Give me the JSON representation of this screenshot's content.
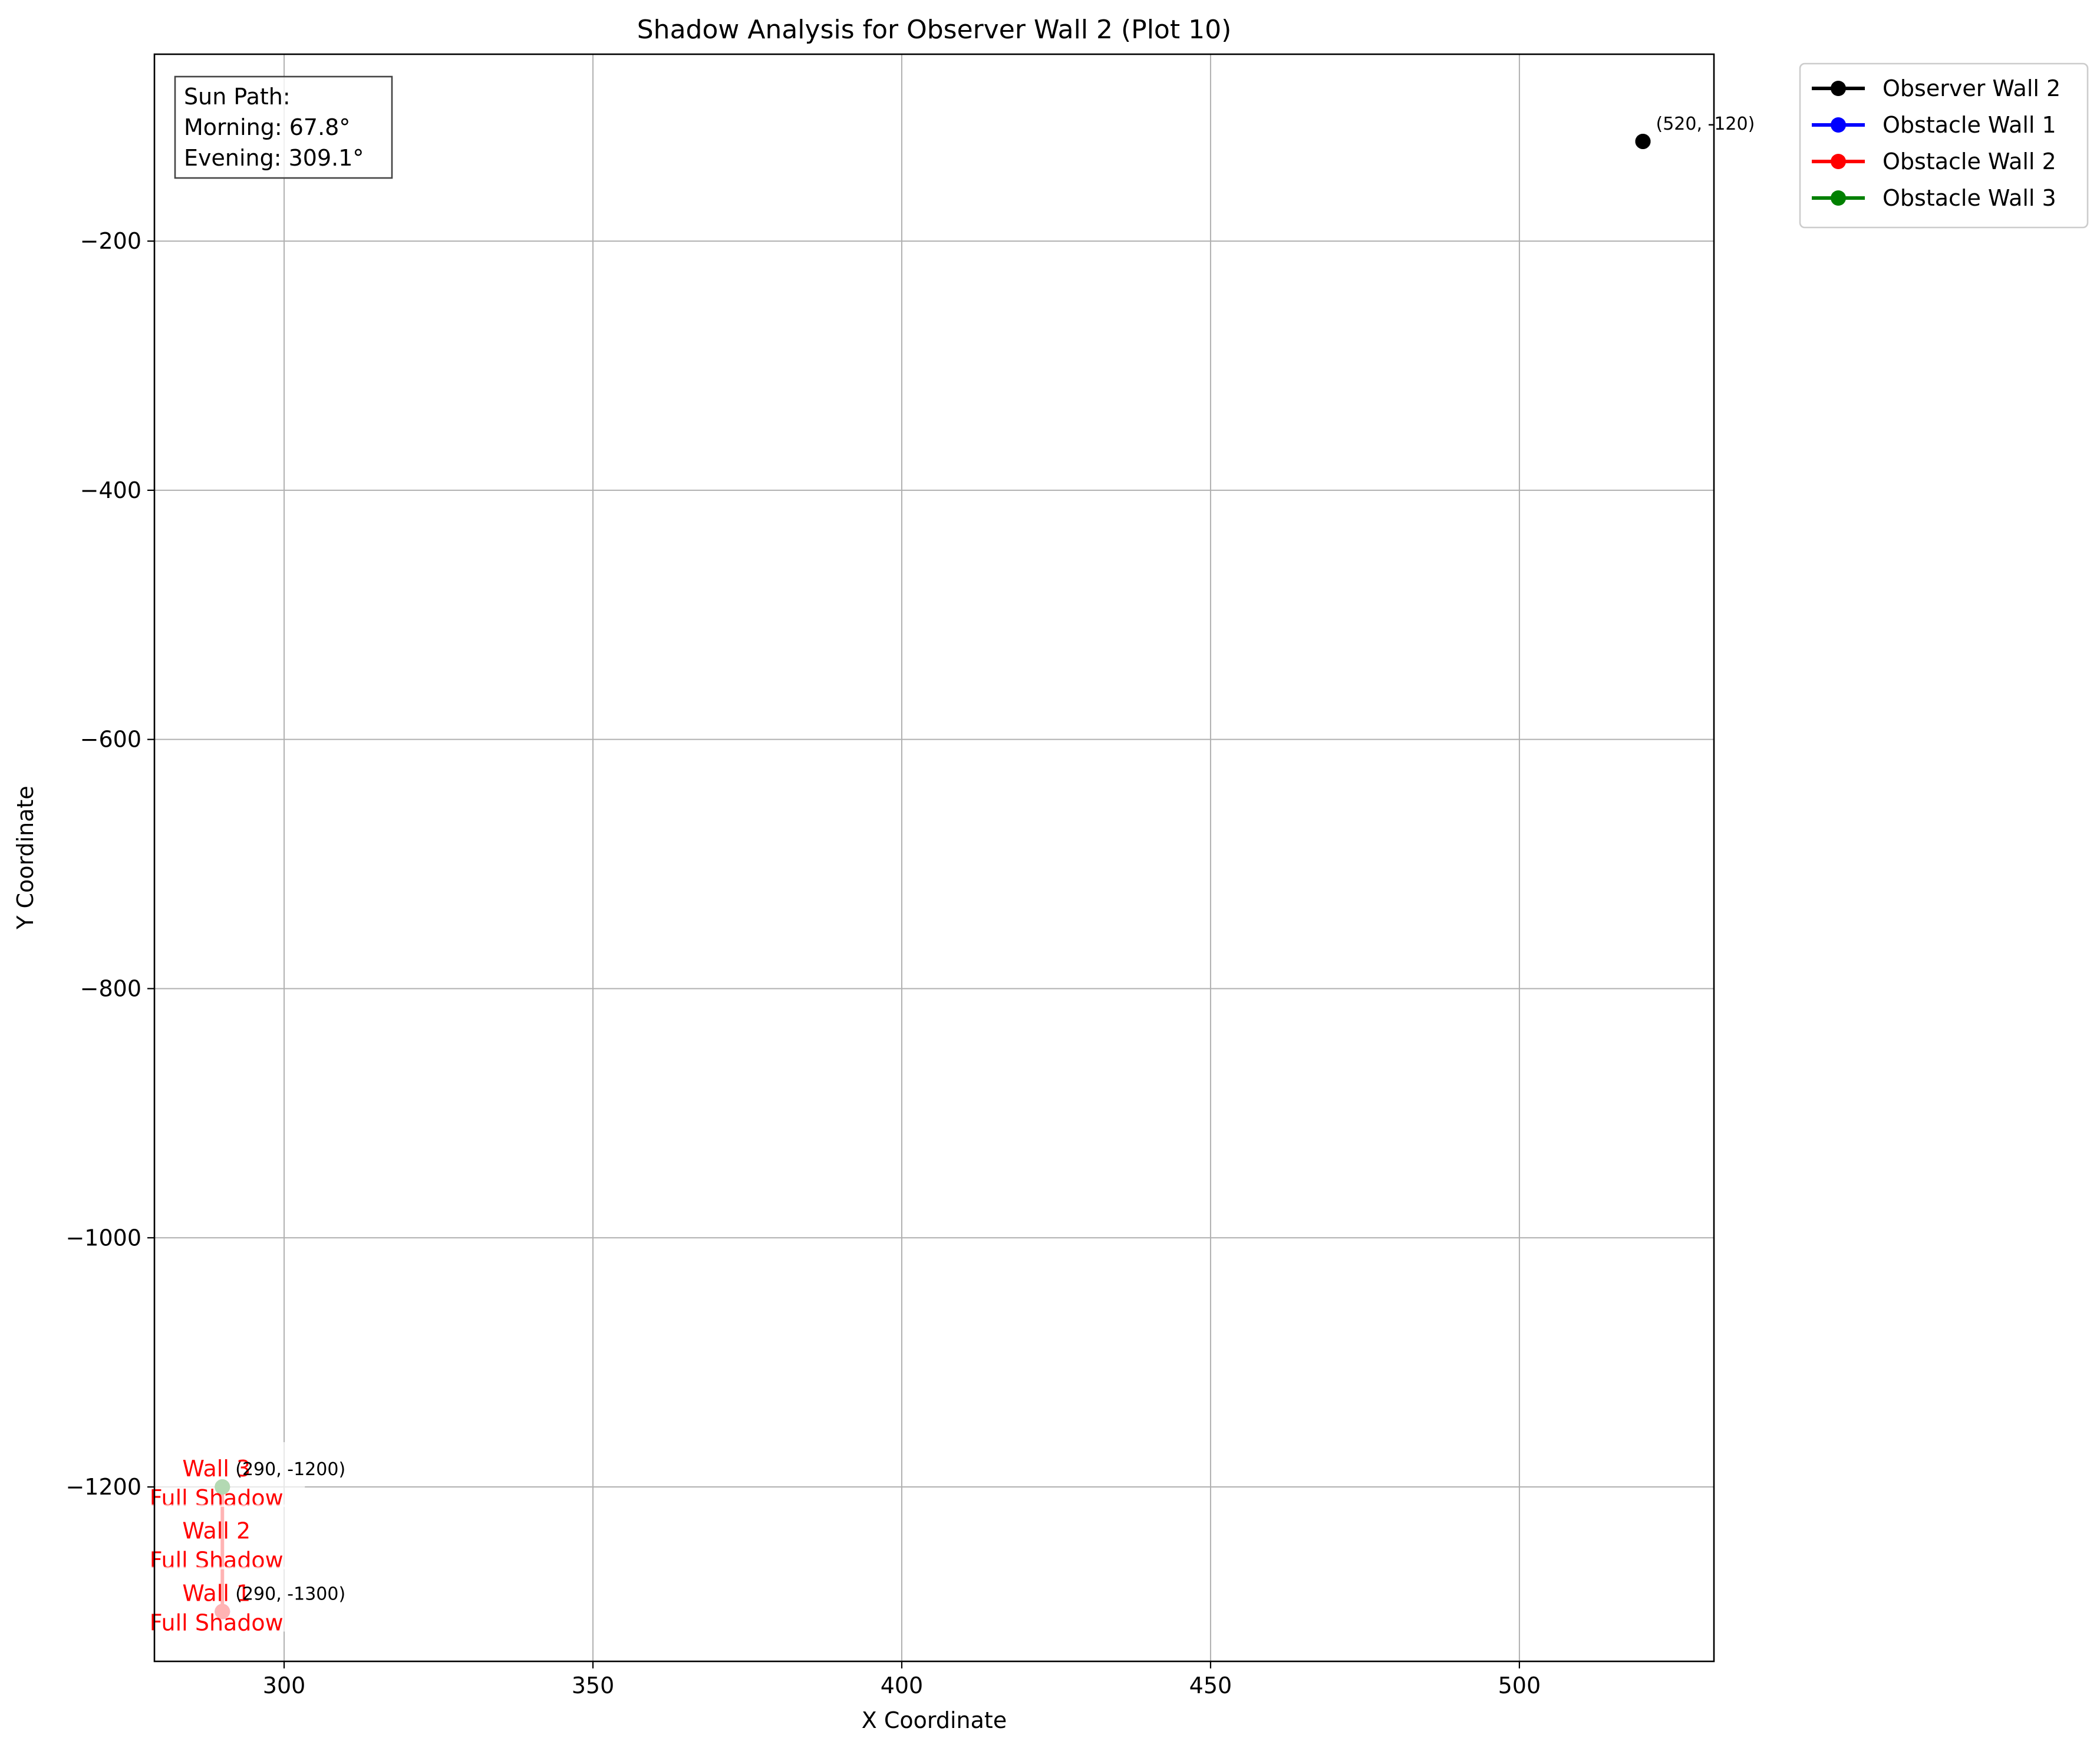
{
  "chart_data": {
    "type": "line",
    "title": "Shadow Analysis for Observer Wall 2 (Plot 10)",
    "xlabel": "X Coordinate",
    "ylabel": "Y Coordinate",
    "xlim": [
      279,
      531.5
    ],
    "ylim": [
      -1340,
      -50
    ],
    "xticks": [
      300,
      350,
      400,
      450,
      500
    ],
    "yticks": [
      -200,
      -400,
      -600,
      -800,
      -1000,
      -1200
    ],
    "xtick_labels": [
      "300",
      "350",
      "400",
      "450",
      "500"
    ],
    "ytick_labels": [
      "−200",
      "−400",
      "−600",
      "−800",
      "−1000",
      "−1200"
    ],
    "grid": true,
    "legend_position": "outside-top-right",
    "series": [
      {
        "name": "Observer Wall 2",
        "color": "#000000",
        "points": [
          [
            520,
            -120
          ],
          [
            520,
            -120
          ]
        ]
      },
      {
        "name": "Obstacle Wall 1",
        "color": "#0000ff",
        "points": [
          [
            290,
            -1300
          ],
          [
            290,
            -1300
          ]
        ]
      },
      {
        "name": "Obstacle Wall 2",
        "color": "#ff0000",
        "points": [
          [
            290,
            -1300
          ],
          [
            290,
            -1200
          ]
        ]
      },
      {
        "name": "Obstacle Wall 3",
        "color": "#008000",
        "points": [
          [
            290,
            -1200
          ],
          [
            290,
            -1200
          ]
        ]
      }
    ],
    "point_labels": [
      {
        "text": "(520, -120)",
        "x": 520,
        "y": -120
      },
      {
        "text": "(290, -1200)",
        "x": 290,
        "y": -1200
      },
      {
        "text": "(290, -1300)",
        "x": 290,
        "y": -1300
      }
    ],
    "shadow_labels": [
      {
        "wall": "Wall 3",
        "status": "Full Shadow",
        "x": 290,
        "y": -1200,
        "color": "#ff0000"
      },
      {
        "wall": "Wall 2",
        "status": "Full Shadow",
        "x": 290,
        "y": -1250,
        "color": "#ff0000"
      },
      {
        "wall": "Wall 1",
        "status": "Full Shadow",
        "x": 290,
        "y": -1300,
        "color": "#ff0000"
      }
    ],
    "info_box": {
      "lines": [
        "Sun Path:",
        "Morning: 67.8°",
        "Evening: 309.1°"
      ],
      "position": "top-left"
    }
  }
}
